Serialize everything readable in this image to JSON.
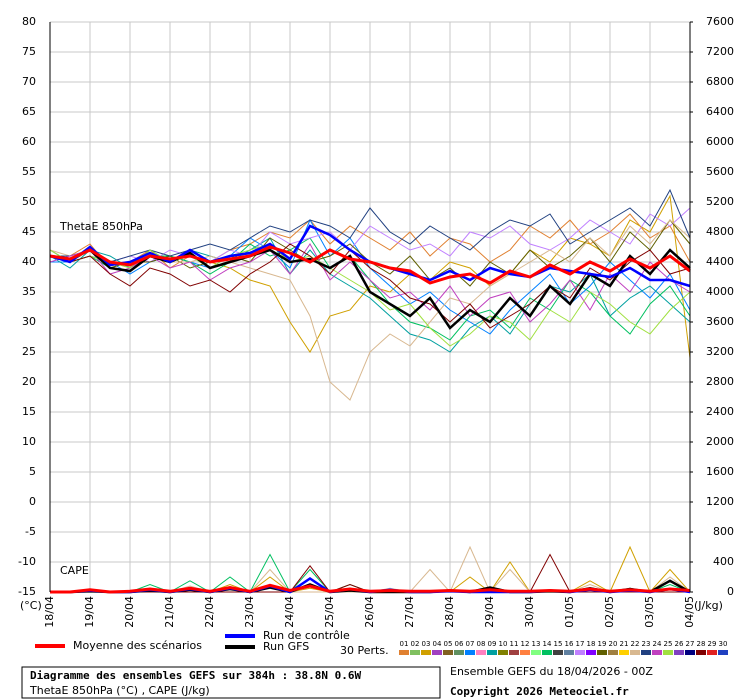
{
  "chart_data": {
    "type": "line",
    "title": "Diagramme des ensembles GEFS sur 384h : 38.8N 0.6W",
    "subtitle": "ThetaE 850hPa (°C) , CAPE (J/kg)",
    "run_info": "Ensemble GEFS du 18/04/2026 - 00Z",
    "copyright": "Copyright 2026 Meteociel.fr",
    "y_label": "(°C)",
    "y2_label": "(J/kg)",
    "annotations": [
      "ThetaE 850hPa",
      "CAPE"
    ],
    "grid": true,
    "x": [
      0,
      12,
      24,
      36,
      48,
      60,
      72,
      84,
      96,
      108,
      120,
      132,
      144,
      156,
      168,
      180,
      192,
      204,
      216,
      228,
      240,
      252,
      264,
      276,
      288,
      300,
      312,
      324,
      336,
      348,
      360,
      372,
      384
    ],
    "xlim": [
      0,
      384
    ],
    "xticks": [
      {
        "value": 0,
        "label": "18/04"
      },
      {
        "value": 24,
        "label": "19/04"
      },
      {
        "value": 48,
        "label": "20/04"
      },
      {
        "value": 72,
        "label": "21/04"
      },
      {
        "value": 96,
        "label": "22/04"
      },
      {
        "value": 120,
        "label": "23/04"
      },
      {
        "value": 144,
        "label": "24/04"
      },
      {
        "value": 168,
        "label": "25/04"
      },
      {
        "value": 192,
        "label": "26/04"
      },
      {
        "value": 216,
        "label": "27/04"
      },
      {
        "value": 240,
        "label": "28/04"
      },
      {
        "value": 264,
        "label": "29/04"
      },
      {
        "value": 288,
        "label": "30/04"
      },
      {
        "value": 312,
        "label": "01/05"
      },
      {
        "value": 336,
        "label": "02/05"
      },
      {
        "value": 360,
        "label": "03/05"
      },
      {
        "value": 384,
        "label": "04/05"
      }
    ],
    "ylim": [
      -15,
      80
    ],
    "yticks": [
      -15,
      -10,
      -5,
      0,
      5,
      10,
      15,
      20,
      25,
      30,
      35,
      40,
      45,
      50,
      55,
      60,
      65,
      70,
      75,
      80
    ],
    "y2lim": [
      0,
      7600
    ],
    "y2ticks": [
      0,
      400,
      800,
      1200,
      1600,
      2000,
      2400,
      2800,
      3200,
      3600,
      4000,
      4400,
      4800,
      5200,
      5600,
      6000,
      6400,
      6800,
      7200,
      7600
    ],
    "series": [
      {
        "name": "Moyenne des scénarios",
        "color": "#ff0000",
        "values": [
          41,
          40.5,
          42,
          40,
          39.5,
          41,
          40.5,
          41,
          40,
          40.5,
          41,
          42.5,
          41.5,
          40,
          42,
          40.5,
          40,
          39,
          38.5,
          36.5,
          37.5,
          38,
          36.5,
          38.5,
          37.5,
          39.5,
          38,
          40,
          38.5,
          40.5,
          39,
          41,
          38.5
        ],
        "cape": [
          0,
          0,
          30,
          0,
          10,
          40,
          10,
          50,
          10,
          60,
          10,
          90,
          20,
          80,
          10,
          40,
          10,
          20,
          10,
          10,
          20,
          10,
          30,
          10,
          10,
          20,
          10,
          40,
          10,
          30,
          10,
          40,
          20
        ]
      },
      {
        "name": "Run de contrôle",
        "color": "#0000ff",
        "values": [
          41,
          40,
          42.5,
          39.5,
          40,
          41.5,
          40,
          42,
          40,
          41,
          41.5,
          43,
          40.5,
          46,
          44.5,
          42,
          40,
          39,
          38,
          37,
          38.5,
          37,
          39,
          38,
          37.5,
          39,
          38.5,
          38,
          37.5,
          39,
          37,
          37,
          36
        ],
        "cape": [
          0,
          0,
          20,
          0,
          0,
          30,
          0,
          40,
          0,
          50,
          0,
          80,
          0,
          180,
          0,
          40,
          0,
          30,
          0,
          0,
          10,
          0,
          0,
          0,
          0,
          20,
          0,
          30,
          0,
          20,
          0,
          40,
          0
        ]
      },
      {
        "name": "Run GFS",
        "color": "#000000",
        "values": [
          41,
          40.5,
          42,
          39,
          38.5,
          41,
          40,
          41.5,
          39,
          40,
          41,
          42,
          40,
          40.5,
          39,
          41,
          35,
          33,
          31,
          34,
          29,
          32,
          30,
          34,
          31,
          36,
          33,
          38,
          36,
          41,
          38,
          42,
          39
        ],
        "cape": [
          0,
          0,
          10,
          0,
          0,
          20,
          0,
          30,
          0,
          40,
          0,
          60,
          0,
          100,
          0,
          20,
          0,
          0,
          0,
          0,
          20,
          0,
          60,
          0,
          0,
          10,
          0,
          50,
          0,
          40,
          0,
          150,
          0
        ]
      }
    ],
    "perturbation_label": "30 Perts.",
    "perturbations": [
      {
        "code": "01",
        "color": "#e08030",
        "values": [
          41,
          41,
          43,
          39,
          40,
          42,
          39,
          41,
          40,
          42,
          43,
          45,
          44,
          47,
          43,
          46,
          44,
          42,
          45,
          41,
          44,
          43,
          40,
          42,
          46,
          44,
          47,
          43,
          45,
          48,
          44,
          46,
          40
        ]
      },
      {
        "code": "02",
        "color": "#80c060"
      },
      {
        "code": "03",
        "color": "#d0a000",
        "values": [
          41,
          40,
          42,
          39,
          40,
          41,
          40,
          41,
          40,
          39,
          37,
          36,
          30,
          25,
          31,
          32,
          36,
          35,
          38,
          37,
          40,
          39,
          36,
          38,
          42,
          40,
          44,
          43,
          41,
          47,
          45,
          51,
          24
        ],
        "cape": [
          0,
          0,
          0,
          0,
          0,
          50,
          0,
          0,
          0,
          100,
          0,
          200,
          0,
          50,
          0,
          0,
          0,
          0,
          0,
          0,
          0,
          200,
          0,
          400,
          0,
          0,
          0,
          150,
          0,
          600,
          0,
          300,
          0
        ]
      },
      {
        "code": "04",
        "color": "#a040c0"
      },
      {
        "code": "05",
        "color": "#806020"
      },
      {
        "code": "06",
        "color": "#609060"
      },
      {
        "code": "07",
        "color": "#0080ff",
        "values": [
          40,
          40,
          41,
          40,
          38,
          40,
          41,
          40,
          39,
          41,
          44,
          42,
          39,
          47,
          41,
          44,
          39,
          36,
          33,
          35,
          32,
          30,
          28,
          32,
          35,
          38,
          33,
          36,
          40,
          37,
          34,
          38,
          32
        ]
      },
      {
        "code": "08",
        "color": "#ff80c0"
      },
      {
        "code": "09",
        "color": "#00a0a0",
        "values": [
          41,
          39,
          42,
          41,
          39,
          42,
          40,
          42,
          41,
          40,
          42,
          44,
          38,
          42,
          38,
          36,
          34,
          31,
          28,
          27,
          25,
          29,
          31,
          28,
          33,
          36,
          35,
          38,
          31,
          34,
          36,
          33,
          30
        ]
      },
      {
        "code": "10",
        "color": "#808000"
      },
      {
        "code": "11",
        "color": "#a04040"
      },
      {
        "code": "12",
        "color": "#ff8040"
      },
      {
        "code": "13",
        "color": "#80ff80"
      },
      {
        "code": "14",
        "color": "#00c060",
        "values": [
          42,
          40,
          41,
          39,
          40,
          41,
          41,
          40,
          38,
          40,
          43,
          41,
          42,
          44,
          39,
          41,
          37,
          33,
          30,
          29,
          27,
          31,
          32,
          29,
          34,
          32,
          37,
          35,
          31,
          28,
          33,
          36,
          31
        ],
        "cape": [
          0,
          0,
          0,
          0,
          0,
          100,
          0,
          150,
          0,
          200,
          0,
          500,
          0,
          300,
          0,
          100,
          0,
          0,
          0,
          0,
          0,
          0,
          0,
          0,
          0,
          0,
          0,
          0,
          0,
          50,
          0,
          100,
          0
        ]
      },
      {
        "code": "15",
        "color": "#404040"
      },
      {
        "code": "16",
        "color": "#6080a0"
      },
      {
        "code": "17",
        "color": "#c080ff",
        "values": [
          41,
          40,
          42,
          40,
          41,
          40,
          42,
          41,
          40,
          42,
          41,
          45,
          43,
          44,
          45,
          42,
          46,
          44,
          42,
          43,
          41,
          45,
          44,
          46,
          43,
          42,
          44,
          47,
          45,
          43,
          48,
          46,
          49
        ]
      },
      {
        "code": "18",
        "color": "#8000ff"
      },
      {
        "code": "19",
        "color": "#606000",
        "values": [
          41,
          40,
          42,
          39,
          40,
          40,
          41,
          39,
          40,
          41,
          40,
          44,
          42,
          40,
          41,
          43,
          40,
          38,
          41,
          37,
          39,
          36,
          40,
          38,
          42,
          39,
          41,
          44,
          40,
          45,
          42,
          47,
          43
        ]
      },
      {
        "code": "20",
        "color": "#a08040"
      },
      {
        "code": "21",
        "color": "#ffd000"
      },
      {
        "code": "22",
        "color": "#d8b890",
        "values": [
          42,
          41,
          42,
          40,
          39,
          41,
          40,
          40,
          41,
          40,
          39,
          38,
          37,
          31,
          20,
          17,
          25,
          28,
          26,
          30,
          34,
          33,
          36,
          38,
          40,
          42,
          40,
          44,
          41,
          46,
          43,
          47,
          44
        ],
        "cape": [
          0,
          0,
          0,
          0,
          0,
          0,
          0,
          80,
          0,
          0,
          0,
          300,
          0,
          0,
          0,
          0,
          0,
          50,
          0,
          300,
          0,
          600,
          0,
          300,
          0,
          0,
          0,
          100,
          0,
          0,
          0,
          200,
          0
        ]
      },
      {
        "code": "23",
        "color": "#204080",
        "values": [
          41,
          41,
          42,
          40,
          41,
          42,
          41,
          42,
          43,
          42,
          44,
          46,
          45,
          47,
          46,
          44,
          49,
          45,
          43,
          46,
          44,
          42,
          45,
          47,
          46,
          48,
          43,
          45,
          47,
          49,
          46,
          52,
          44
        ]
      },
      {
        "code": "24",
        "color": "#c040c0",
        "values": [
          40,
          41,
          42,
          38,
          39,
          41,
          39,
          40,
          37,
          39,
          40,
          42,
          38,
          43,
          37,
          40,
          37,
          34,
          35,
          32,
          36,
          31,
          34,
          35,
          30,
          33,
          37,
          32,
          38,
          35,
          40,
          37,
          35
        ]
      },
      {
        "code": "25",
        "color": "#a0e040",
        "values": [
          42,
          40,
          41,
          40,
          39,
          42,
          40,
          41,
          39,
          41,
          42,
          43,
          40,
          41,
          39,
          37,
          35,
          32,
          33,
          29,
          26,
          28,
          31,
          30,
          27,
          32,
          30,
          35,
          33,
          30,
          28,
          32,
          35
        ]
      },
      {
        "code": "26",
        "color": "#8040c0"
      },
      {
        "code": "27",
        "color": "#000080"
      },
      {
        "code": "28",
        "color": "#800000",
        "values": [
          41,
          40,
          41,
          38,
          36,
          39,
          38,
          36,
          37,
          35,
          38,
          40,
          43,
          41,
          38,
          42,
          39,
          37,
          34,
          33,
          30,
          33,
          29,
          31,
          33,
          36,
          34,
          39,
          37,
          40,
          42,
          38,
          39
        ],
        "cape": [
          0,
          0,
          0,
          0,
          0,
          0,
          0,
          0,
          0,
          0,
          0,
          0,
          0,
          350,
          0,
          100,
          0,
          0,
          0,
          0,
          0,
          0,
          0,
          0,
          0,
          500,
          0,
          0,
          0,
          0,
          0,
          0,
          0
        ]
      },
      {
        "code": "29",
        "color": "#e02020"
      },
      {
        "code": "30",
        "color": "#2040c0"
      }
    ]
  }
}
